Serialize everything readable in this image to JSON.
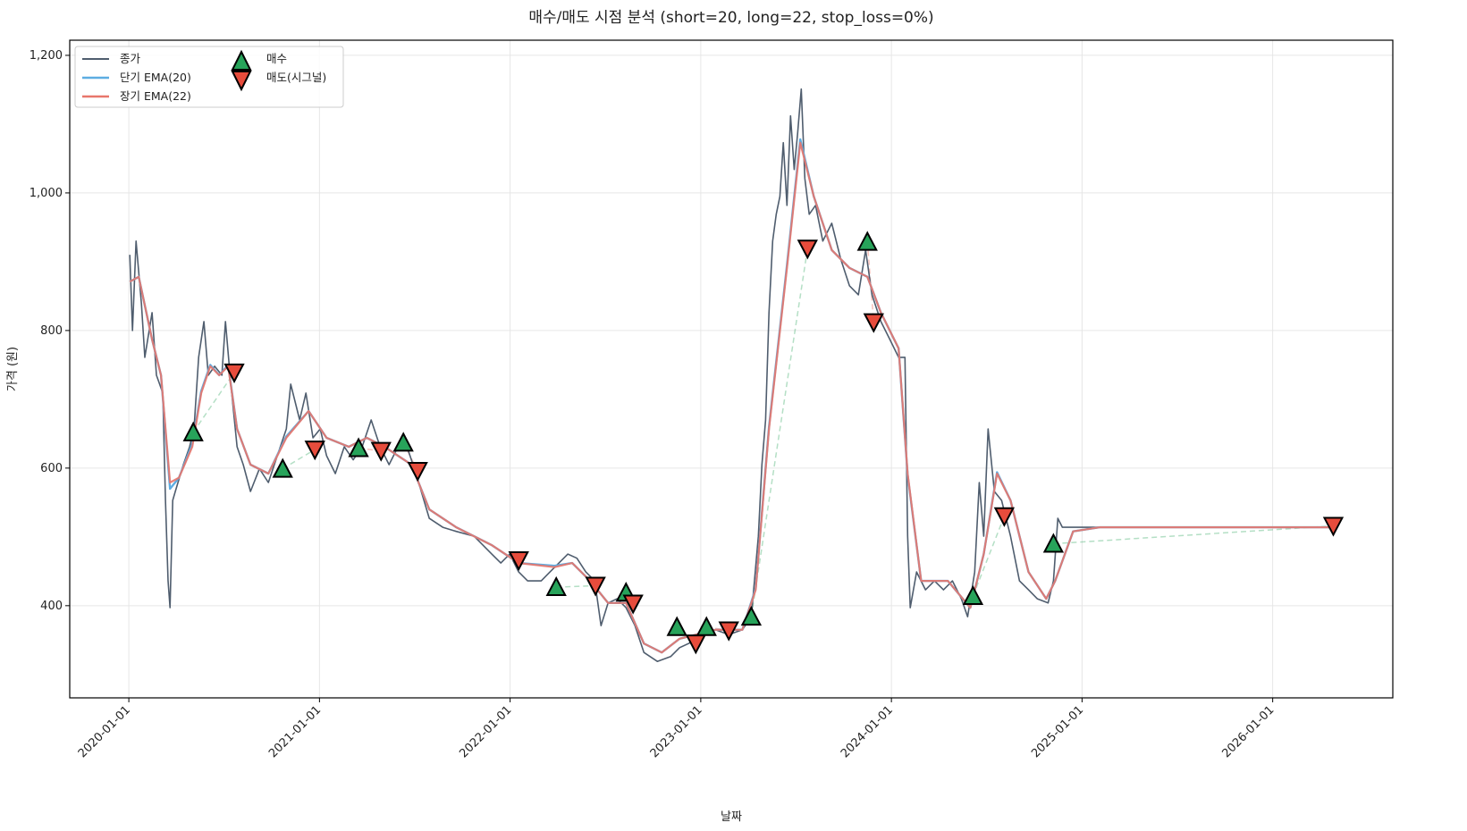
{
  "chart_data": {
    "type": "line",
    "title": "매수/매도 시점 분석 (short=20, long=22, stop_loss=0%)",
    "xlabel": "날짜",
    "ylabel": "가격 (원)",
    "x_unit": "years since 2020-01-01",
    "xlim": [
      -0.31,
      6.63
    ],
    "ylim": [
      266,
      1222
    ],
    "x_ticks": [
      0,
      1,
      2,
      3,
      4,
      5,
      6
    ],
    "x_tick_labels": [
      "2020-01-01",
      "2021-01-01",
      "2022-01-01",
      "2023-01-01",
      "2024-01-01",
      "2025-01-01",
      "2026-01-01"
    ],
    "y_ticks": [
      400,
      600,
      800,
      1000,
      1200
    ],
    "y_tick_labels": [
      "400",
      "600",
      "800",
      "1,000",
      "1,200"
    ],
    "grid": true,
    "legend_position": "top-left",
    "legend": {
      "close": "종가",
      "short": "단기 EMA(20)",
      "long": "장기 EMA(22)",
      "buy": "매수",
      "sell": "매도(시그널)"
    },
    "colors": {
      "close": "#4f5d6e",
      "short": "#5dade2",
      "long": "#e8766b",
      "buy": "#27a35a",
      "sell": "#e74c3c"
    },
    "series": [
      {
        "name": "종가",
        "x": [
          0.005,
          0.019,
          0.038,
          0.066,
          0.084,
          0.122,
          0.145,
          0.178,
          0.192,
          0.206,
          0.216,
          0.23,
          0.244,
          0.286,
          0.319,
          0.342,
          0.366,
          0.394,
          0.417,
          0.45,
          0.488,
          0.507,
          0.535,
          0.568,
          0.6,
          0.638,
          0.685,
          0.732,
          0.779,
          0.826,
          0.849,
          0.896,
          0.929,
          0.966,
          1.004,
          1.037,
          1.083,
          1.13,
          1.177,
          1.224,
          1.271,
          1.318,
          1.365,
          1.412,
          1.459,
          1.506,
          1.576,
          1.647,
          1.717,
          1.811,
          1.904,
          1.951,
          1.998,
          2.045,
          2.092,
          2.163,
          2.209,
          2.256,
          2.303,
          2.35,
          2.397,
          2.444,
          2.477,
          2.514,
          2.561,
          2.608,
          2.655,
          2.702,
          2.772,
          2.842,
          2.889,
          2.936,
          2.983,
          3.03,
          3.077,
          3.147,
          3.218,
          3.265,
          3.302,
          3.321,
          3.34,
          3.358,
          3.377,
          3.396,
          3.415,
          3.433,
          3.452,
          3.471,
          3.49,
          3.508,
          3.527,
          3.546,
          3.569,
          3.602,
          3.64,
          3.687,
          3.734,
          3.78,
          3.827,
          3.865,
          3.898,
          3.945,
          3.992,
          4.038,
          4.071,
          4.085,
          4.099,
          4.132,
          4.179,
          4.226,
          4.273,
          4.32,
          4.367,
          4.4,
          4.437,
          4.461,
          4.484,
          4.507,
          4.54,
          4.578,
          4.625,
          4.672,
          4.719,
          4.765,
          4.822,
          4.85,
          4.873,
          4.897,
          6.313
        ],
        "y": [
          910,
          800,
          930,
          839,
          761,
          826,
          735,
          709,
          553,
          436,
          397,
          553,
          566,
          605,
          631,
          657,
          761,
          813,
          735,
          748,
          735,
          813,
          722,
          631,
          605,
          566,
          599,
          579,
          618,
          657,
          722,
          670,
          709,
          644,
          657,
          618,
          592,
          631,
          612,
          631,
          670,
          631,
          605,
          631,
          631,
          592,
          527,
          514,
          508,
          501,
          475,
          462,
          475,
          449,
          436,
          436,
          449,
          462,
          475,
          469,
          449,
          436,
          371,
          404,
          410,
          397,
          371,
          332,
          319,
          326,
          339,
          345,
          352,
          358,
          365,
          358,
          365,
          384,
          501,
          605,
          670,
          826,
          930,
          969,
          995,
          1073,
          982,
          1112,
          1034,
          1086,
          1151,
          1021,
          969,
          982,
          930,
          956,
          904,
          865,
          852,
          917,
          852,
          813,
          787,
          761,
          761,
          501,
          397,
          449,
          423,
          436,
          423,
          436,
          410,
          384,
          449,
          579,
          501,
          657,
          566,
          553,
          501,
          436,
          423,
          410,
          404,
          436,
          527,
          514,
          514
        ]
      },
      {
        "name": "단기 EMA(20)",
        "x": [
          0.005,
          0.052,
          0.122,
          0.169,
          0.216,
          0.263,
          0.333,
          0.38,
          0.427,
          0.474,
          0.521,
          0.568,
          0.638,
          0.732,
          0.826,
          0.943,
          1.037,
          1.154,
          1.248,
          1.341,
          1.482,
          1.576,
          1.717,
          1.904,
          2.045,
          2.233,
          2.326,
          2.42,
          2.514,
          2.608,
          2.702,
          2.795,
          2.889,
          3.077,
          3.218,
          3.288,
          3.358,
          3.452,
          3.522,
          3.593,
          3.687,
          3.78,
          3.874,
          3.945,
          4.038,
          4.085,
          4.156,
          4.296,
          4.414,
          4.484,
          4.554,
          4.625,
          4.719,
          4.812,
          4.859,
          4.953,
          5.094,
          6.313
        ],
        "y": [
          871,
          878,
          787,
          735,
          570,
          586,
          635,
          712,
          750,
          735,
          750,
          657,
          605,
          592,
          646,
          683,
          644,
          631,
          644,
          631,
          605,
          540,
          514,
          488,
          462,
          458,
          462,
          436,
          404,
          404,
          345,
          332,
          352,
          365,
          365,
          425,
          660,
          895,
          1078,
          995,
          917,
          891,
          878,
          826,
          774,
          590,
          436,
          436,
          397,
          475,
          594,
          553,
          449,
          410,
          436,
          508,
          514,
          514
        ]
      },
      {
        "name": "장기 EMA(22)",
        "x": [
          0.005,
          0.052,
          0.122,
          0.169,
          0.216,
          0.263,
          0.333,
          0.38,
          0.427,
          0.474,
          0.521,
          0.568,
          0.638,
          0.732,
          0.826,
          0.943,
          1.037,
          1.154,
          1.248,
          1.341,
          1.482,
          1.576,
          1.717,
          1.904,
          2.045,
          2.233,
          2.326,
          2.42,
          2.514,
          2.608,
          2.702,
          2.795,
          2.889,
          3.077,
          3.218,
          3.288,
          3.358,
          3.452,
          3.522,
          3.593,
          3.687,
          3.78,
          3.874,
          3.945,
          4.038,
          4.085,
          4.156,
          4.296,
          4.414,
          4.484,
          4.554,
          4.625,
          4.719,
          4.812,
          4.859,
          4.953,
          5.094,
          6.313
        ],
        "y": [
          871,
          878,
          787,
          735,
          579,
          586,
          631,
          709,
          748,
          735,
          748,
          657,
          605,
          592,
          644,
          683,
          644,
          631,
          644,
          631,
          605,
          540,
          514,
          488,
          462,
          456,
          462,
          436,
          404,
          404,
          345,
          332,
          352,
          365,
          365,
          423,
          657,
          891,
          1073,
          995,
          917,
          891,
          878,
          826,
          774,
          592,
          436,
          436,
          397,
          475,
          592,
          553,
          449,
          410,
          436,
          508,
          514,
          514
        ]
      }
    ],
    "buy_signals": {
      "x": [
        0.338,
        0.807,
        1.205,
        1.44,
        2.242,
        2.608,
        2.875,
        3.03,
        3.265,
        3.874,
        4.428,
        4.85
      ],
      "y": [
        652,
        599,
        629,
        637,
        427,
        419,
        369,
        369,
        384,
        929,
        414,
        490
      ]
    },
    "sell_signals": {
      "x": [
        0.553,
        0.976,
        1.323,
        1.515,
        2.045,
        2.448,
        2.645,
        2.974,
        3.147,
        3.56,
        3.907,
        4.592,
        6.318
      ],
      "y": [
        739,
        627,
        625,
        596,
        466,
        429,
        403,
        345,
        364,
        919,
        812,
        530,
        516
      ]
    }
  }
}
